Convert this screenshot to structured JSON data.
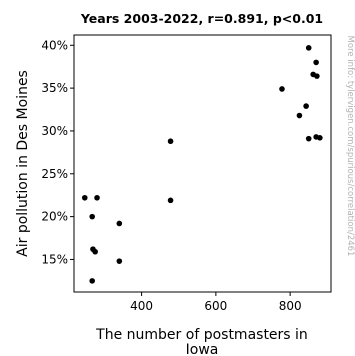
{
  "chart_data": {
    "type": "scatter",
    "title": "Years 2003-2022, r=0.891, p<0.01",
    "xlabel": "The number of postmasters in Iowa",
    "ylabel": "Air pollution in Des Moines",
    "side_note": "More info: tylervigen.com/spurious/correlation/2461",
    "xlim": [
      218,
      910
    ],
    "ylim": [
      11.2,
      41.2
    ],
    "x_ticks": [
      {
        "value": 400,
        "label": "400"
      },
      {
        "value": 600,
        "label": "600"
      },
      {
        "value": 800,
        "label": "800"
      }
    ],
    "y_ticks": [
      {
        "value": 15,
        "label": "15%"
      },
      {
        "value": 20,
        "label": "20%"
      },
      {
        "value": 25,
        "label": "25%"
      },
      {
        "value": 30,
        "label": "30%"
      },
      {
        "value": 35,
        "label": "35%"
      },
      {
        "value": 40,
        "label": "40%"
      }
    ],
    "grid": false,
    "legend": "none",
    "marker_color": "#000000",
    "points": [
      {
        "x": 247,
        "y": 22.2
      },
      {
        "x": 280,
        "y": 22.2
      },
      {
        "x": 267,
        "y": 20.0
      },
      {
        "x": 269,
        "y": 16.2
      },
      {
        "x": 275,
        "y": 15.9
      },
      {
        "x": 267,
        "y": 12.5
      },
      {
        "x": 340,
        "y": 19.2
      },
      {
        "x": 340,
        "y": 14.8
      },
      {
        "x": 478,
        "y": 28.8
      },
      {
        "x": 478,
        "y": 21.9
      },
      {
        "x": 778,
        "y": 34.9
      },
      {
        "x": 825,
        "y": 31.8
      },
      {
        "x": 843,
        "y": 32.9
      },
      {
        "x": 850,
        "y": 39.7
      },
      {
        "x": 850,
        "y": 29.1
      },
      {
        "x": 862,
        "y": 36.6
      },
      {
        "x": 872,
        "y": 36.4
      },
      {
        "x": 870,
        "y": 38.0
      },
      {
        "x": 870,
        "y": 29.3
      },
      {
        "x": 880,
        "y": 29.2
      }
    ]
  }
}
